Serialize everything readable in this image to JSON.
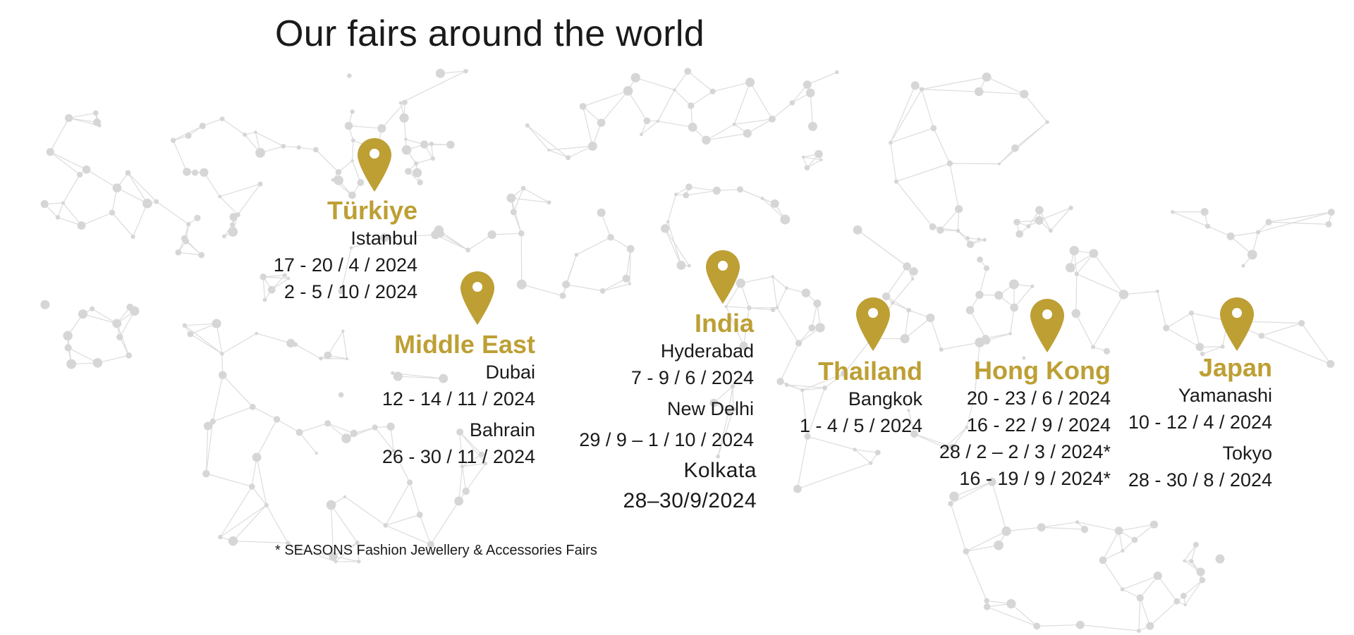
{
  "title": "Our fairs around the world",
  "accent_color": "#bd9f34",
  "regions": {
    "turkiye": {
      "name": "Türkiye",
      "city1": "Istanbul",
      "date1": "17 - 20 / 4 / 2024",
      "date2": "2 - 5 / 10 / 2024"
    },
    "middle_east": {
      "name": "Middle East",
      "city1": "Dubai",
      "date1": "12 - 14 / 11 / 2024",
      "city2": "Bahrain",
      "date2": "26 - 30 / 11 / 2024"
    },
    "india": {
      "name": "India",
      "city1": "Hyderabad",
      "date1": "7 - 9 / 6 / 2024",
      "city2": "New Delhi",
      "date2": "29 / 9 – 1 / 10 / 2024",
      "city3": "Kolkata",
      "date3": "28–30/9/2024"
    },
    "thailand": {
      "name": "Thailand",
      "city1": "Bangkok",
      "date1": "1 - 4 / 5 / 2024"
    },
    "hong_kong": {
      "name": "Hong Kong",
      "date1": "20 - 23 / 6 / 2024",
      "date2": "16 - 22 / 9 / 2024",
      "date3": "28 / 2 – 2 / 3 / 2024*",
      "date4": "16 - 19 / 9 / 2024*"
    },
    "japan": {
      "name": "Japan",
      "city1": "Yamanashi",
      "date1": "10 - 12 / 4 / 2024",
      "city2": "Tokyo",
      "date2": "28 - 30 / 8 / 2024"
    }
  },
  "footnote": "* SEASONS Fashion Jewellery & Accessories Fairs",
  "icons": {
    "pin": "map-pin-icon"
  }
}
